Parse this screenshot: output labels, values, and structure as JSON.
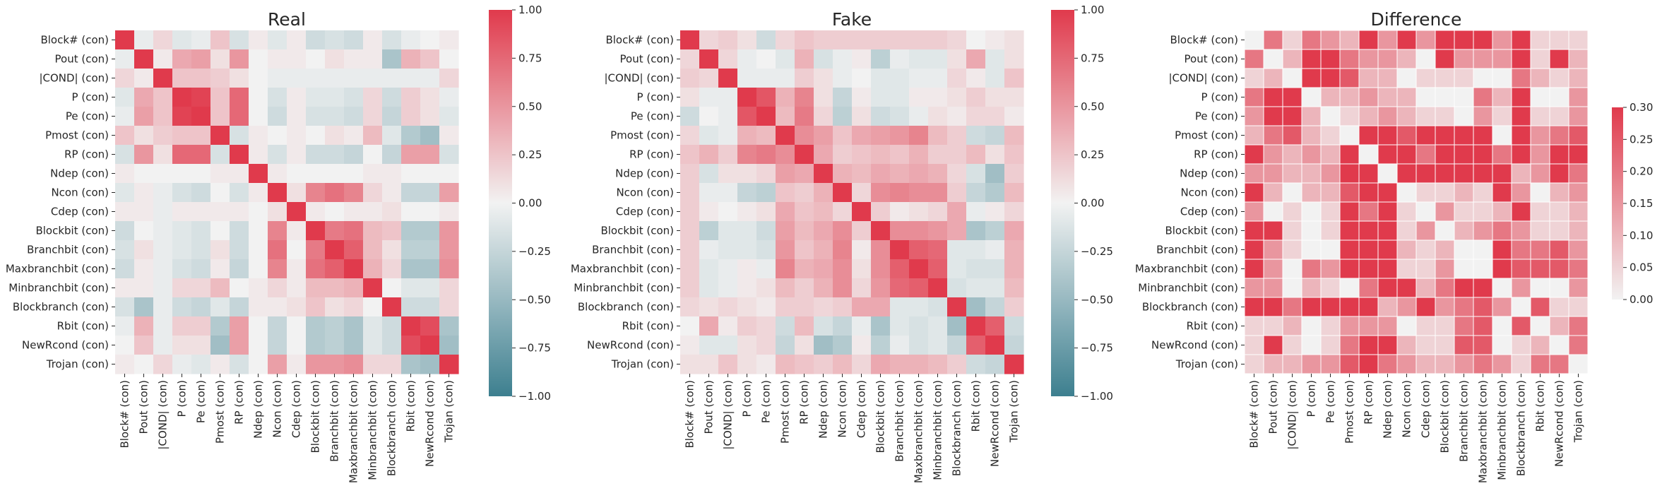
{
  "palette": {
    "neg": "#3d7f8f",
    "mid": "#f2f2f2",
    "pos": "#e03a4c",
    "text": "#262626"
  },
  "chart_data": [
    {
      "type": "heatmap",
      "title": "Real",
      "labels": [
        "Block# (con)",
        "Pout (con)",
        "|COND| (con)",
        "P (con)",
        "Pe (con)",
        "Pmost (con)",
        "RP (con)",
        "Ndep (con)",
        "Ncon (con)",
        "Cdep (con)",
        "Blockbit (con)",
        "Branchbit (con)",
        "Maxbranchbit (con)",
        "Minbranchbit (con)",
        "Blockbranch (con)",
        "Rbit (con)",
        "NewRcond (con)",
        "Trojan (con)"
      ],
      "vmin": -1,
      "vmax": 1,
      "colorbar_ticks": [
        -1,
        -0.75,
        -0.5,
        -0.25,
        0,
        0.25,
        0.5,
        0.75,
        1
      ],
      "colorbar_tick_labels": [
        "−1.00",
        "−0.75",
        "−0.50",
        "−0.25",
        "0.00",
        "0.25",
        "0.50",
        "0.75",
        "1.00"
      ],
      "grid": false,
      "values": [
        [
          1.0,
          -0.05,
          0.15,
          -0.1,
          -0.05,
          0.25,
          -0.15,
          0.05,
          -0.1,
          0.05,
          -0.2,
          -0.15,
          -0.2,
          0.05,
          -0.15,
          -0.05,
          0.0,
          0.05
        ],
        [
          -0.05,
          1.0,
          0.05,
          0.4,
          0.45,
          0.1,
          0.5,
          0.0,
          0.05,
          0.05,
          0.0,
          0.1,
          0.05,
          0.05,
          -0.4,
          0.35,
          0.25,
          0.0
        ],
        [
          0.15,
          0.05,
          1.0,
          0.25,
          0.25,
          0.2,
          0.1,
          0.0,
          -0.05,
          -0.05,
          -0.05,
          -0.05,
          -0.05,
          -0.05,
          -0.05,
          -0.05,
          -0.05,
          0.15
        ],
        [
          -0.1,
          0.4,
          0.25,
          1.0,
          0.95,
          0.25,
          0.75,
          0.0,
          -0.15,
          0.05,
          -0.1,
          -0.1,
          -0.15,
          0.15,
          -0.2,
          0.2,
          0.1,
          -0.05
        ],
        [
          -0.05,
          0.45,
          0.25,
          0.95,
          1.0,
          0.25,
          0.75,
          0.0,
          -0.2,
          0.05,
          -0.15,
          -0.15,
          -0.2,
          0.15,
          -0.25,
          0.2,
          0.1,
          -0.1
        ],
        [
          0.25,
          0.1,
          0.2,
          0.25,
          0.25,
          1.0,
          -0.15,
          0.05,
          0.0,
          0.05,
          0.0,
          0.1,
          0.05,
          0.3,
          -0.1,
          -0.35,
          -0.45,
          0.05
        ],
        [
          -0.15,
          0.5,
          0.1,
          0.75,
          0.75,
          -0.15,
          1.0,
          0.05,
          -0.15,
          0.05,
          -0.2,
          -0.2,
          -0.25,
          0.0,
          -0.25,
          0.45,
          0.45,
          -0.15
        ],
        [
          0.05,
          0.0,
          0.0,
          0.0,
          0.0,
          0.05,
          0.05,
          1.0,
          0.05,
          0.0,
          0.0,
          0.0,
          0.0,
          0.05,
          0.05,
          0.0,
          0.0,
          0.0
        ],
        [
          -0.1,
          0.05,
          -0.05,
          -0.15,
          -0.2,
          0.0,
          -0.15,
          0.05,
          1.0,
          0.1,
          0.6,
          0.7,
          0.6,
          0.15,
          0.05,
          -0.25,
          -0.25,
          0.45
        ],
        [
          0.05,
          0.05,
          -0.05,
          0.05,
          0.05,
          0.05,
          0.05,
          0.0,
          0.1,
          1.0,
          0.05,
          0.0,
          0.05,
          0.05,
          0.1,
          0.0,
          0.0,
          0.05
        ],
        [
          -0.2,
          0.0,
          -0.05,
          -0.1,
          -0.15,
          0.0,
          -0.2,
          0.0,
          0.6,
          0.05,
          1.0,
          0.65,
          0.7,
          0.3,
          0.25,
          -0.35,
          -0.35,
          0.5
        ],
        [
          -0.15,
          0.1,
          -0.05,
          -0.1,
          -0.15,
          0.1,
          -0.2,
          0.0,
          0.7,
          0.0,
          0.65,
          1.0,
          0.8,
          0.3,
          0.1,
          -0.3,
          -0.3,
          0.5
        ],
        [
          -0.2,
          0.05,
          -0.05,
          -0.15,
          -0.2,
          0.05,
          -0.25,
          0.0,
          0.6,
          0.05,
          0.7,
          0.8,
          1.0,
          0.35,
          0.15,
          -0.4,
          -0.4,
          0.55
        ],
        [
          0.05,
          0.05,
          -0.05,
          0.15,
          0.15,
          0.3,
          0.0,
          0.05,
          0.15,
          0.05,
          0.3,
          0.3,
          0.35,
          1.0,
          0.0,
          -0.1,
          -0.1,
          0.15
        ],
        [
          -0.15,
          -0.4,
          -0.05,
          -0.2,
          -0.25,
          -0.1,
          -0.25,
          0.05,
          0.05,
          0.1,
          0.25,
          0.1,
          0.15,
          0.0,
          1.0,
          -0.2,
          -0.2,
          0.15
        ],
        [
          -0.05,
          0.35,
          -0.05,
          0.2,
          0.2,
          -0.35,
          0.45,
          0.0,
          -0.25,
          0.0,
          -0.35,
          -0.3,
          -0.4,
          -0.1,
          -0.2,
          1.0,
          0.9,
          -0.4
        ],
        [
          0.0,
          0.25,
          -0.05,
          0.1,
          0.1,
          -0.45,
          0.45,
          0.0,
          -0.25,
          0.0,
          -0.35,
          -0.3,
          -0.4,
          -0.1,
          -0.2,
          0.9,
          1.0,
          -0.45
        ],
        [
          0.05,
          0.0,
          0.15,
          -0.05,
          -0.1,
          0.05,
          -0.15,
          0.0,
          0.45,
          0.05,
          0.5,
          0.5,
          0.55,
          0.15,
          0.15,
          -0.4,
          -0.45,
          1.0
        ]
      ]
    },
    {
      "type": "heatmap",
      "title": "Fake",
      "labels": [
        "Block# (con)",
        "Pout (con)",
        "|COND| (con)",
        "P (con)",
        "Pe (con)",
        "Pmost (con)",
        "RP (con)",
        "Ndep (con)",
        "Ncon (con)",
        "Cdep (con)",
        "Blockbit (con)",
        "Branchbit (con)",
        "Maxbranchbit (con)",
        "Minbranchbit (con)",
        "Blockbranch (con)",
        "Rbit (con)",
        "NewRcond (con)",
        "Trojan (con)"
      ],
      "vmin": -1,
      "vmax": 1,
      "colorbar_ticks": [
        -1,
        -0.75,
        -0.5,
        -0.25,
        0,
        0.25,
        0.5,
        0.75,
        1
      ],
      "colorbar_tick_labels": [
        "−1.00",
        "−0.75",
        "−0.50",
        "−0.25",
        "0.00",
        "0.25",
        "0.50",
        "0.75",
        "1.00"
      ],
      "grid": false,
      "values": [
        [
          1.0,
          0.15,
          0.2,
          0.1,
          -0.2,
          0.15,
          0.25,
          0.2,
          0.2,
          0.2,
          0.2,
          0.2,
          0.2,
          0.2,
          0.15,
          0.0,
          0.05,
          0.1
        ],
        [
          0.15,
          1.0,
          0.15,
          -0.05,
          0.0,
          -0.1,
          0.35,
          -0.15,
          -0.05,
          0.05,
          -0.3,
          -0.05,
          -0.1,
          -0.1,
          0.1,
          0.4,
          -0.1,
          0.1
        ],
        [
          0.2,
          0.15,
          1.0,
          -0.05,
          -0.05,
          -0.05,
          0.2,
          0.1,
          -0.05,
          0.0,
          -0.1,
          -0.1,
          -0.05,
          -0.05,
          0.15,
          0.05,
          -0.1,
          0.25
        ],
        [
          0.1,
          -0.05,
          -0.05,
          1.0,
          0.85,
          0.35,
          0.6,
          0.1,
          -0.25,
          0.05,
          -0.1,
          -0.1,
          0.05,
          0.05,
          0.1,
          0.2,
          0.1,
          0.1
        ],
        [
          -0.2,
          0.0,
          -0.05,
          0.85,
          1.0,
          0.3,
          0.65,
          0.15,
          -0.3,
          0.1,
          -0.2,
          -0.15,
          -0.05,
          0.1,
          0.05,
          0.15,
          0.15,
          0.05
        ],
        [
          0.15,
          -0.1,
          -0.05,
          0.35,
          0.3,
          1.0,
          0.55,
          0.45,
          0.25,
          0.4,
          0.45,
          0.5,
          0.6,
          0.3,
          0.2,
          -0.2,
          -0.25,
          0.3
        ],
        [
          0.25,
          0.35,
          0.2,
          0.6,
          0.65,
          0.55,
          1.0,
          0.4,
          0.2,
          0.25,
          0.3,
          0.25,
          0.35,
          0.2,
          0.2,
          0.3,
          0.1,
          0.25
        ],
        [
          0.2,
          -0.15,
          0.1,
          0.1,
          0.15,
          0.45,
          0.4,
          1.0,
          0.35,
          0.3,
          0.4,
          0.35,
          0.4,
          0.35,
          0.15,
          -0.15,
          -0.45,
          0.2
        ],
        [
          0.2,
          -0.05,
          -0.05,
          -0.25,
          -0.3,
          0.25,
          0.2,
          0.35,
          1.0,
          0.15,
          0.55,
          0.6,
          0.55,
          0.55,
          0.2,
          -0.25,
          -0.35,
          0.3
        ],
        [
          0.2,
          0.05,
          0.0,
          0.05,
          0.1,
          0.4,
          0.25,
          0.3,
          0.15,
          1.0,
          0.2,
          0.05,
          0.1,
          0.15,
          0.4,
          -0.05,
          0.05,
          0.15
        ],
        [
          0.2,
          -0.3,
          -0.1,
          -0.1,
          -0.2,
          0.45,
          0.3,
          0.4,
          0.55,
          0.2,
          1.0,
          0.55,
          0.55,
          0.5,
          0.4,
          -0.4,
          -0.3,
          0.4
        ],
        [
          0.2,
          -0.05,
          -0.1,
          -0.1,
          -0.15,
          0.5,
          0.25,
          0.35,
          0.6,
          0.05,
          0.55,
          1.0,
          0.8,
          0.75,
          -0.1,
          -0.1,
          -0.05,
          0.35
        ],
        [
          0.2,
          -0.1,
          -0.05,
          0.05,
          -0.05,
          0.6,
          0.35,
          0.4,
          0.55,
          0.1,
          0.55,
          0.8,
          1.0,
          0.8,
          -0.1,
          -0.15,
          -0.15,
          0.35
        ],
        [
          0.2,
          -0.1,
          -0.05,
          0.05,
          0.1,
          0.3,
          0.2,
          0.35,
          0.55,
          0.15,
          0.5,
          0.75,
          0.8,
          1.0,
          -0.15,
          -0.1,
          -0.1,
          0.3
        ],
        [
          0.15,
          0.1,
          0.15,
          0.1,
          0.05,
          0.2,
          0.2,
          0.15,
          0.2,
          0.4,
          0.4,
          -0.1,
          -0.1,
          -0.15,
          1.0,
          -0.45,
          -0.25,
          0.2
        ],
        [
          0.0,
          0.4,
          0.05,
          0.2,
          0.15,
          -0.2,
          0.3,
          -0.15,
          -0.25,
          -0.05,
          -0.4,
          -0.1,
          -0.15,
          -0.1,
          -0.45,
          1.0,
          0.8,
          -0.2
        ],
        [
          0.05,
          -0.1,
          -0.1,
          0.1,
          0.15,
          -0.25,
          0.1,
          -0.45,
          -0.35,
          0.05,
          -0.3,
          -0.05,
          -0.15,
          -0.1,
          -0.25,
          0.8,
          1.0,
          -0.25
        ],
        [
          0.1,
          0.1,
          0.25,
          0.1,
          0.05,
          0.3,
          0.25,
          0.2,
          0.3,
          0.15,
          0.4,
          0.35,
          0.35,
          0.3,
          0.2,
          -0.2,
          -0.25,
          1.0
        ]
      ]
    },
    {
      "type": "heatmap",
      "title": "Difference",
      "labels": [
        "Block# (con)",
        "Pout (con)",
        "|COND| (con)",
        "P (con)",
        "Pe (con)",
        "Pmost (con)",
        "RP (con)",
        "Ndep (con)",
        "Ncon (con)",
        "Cdep (con)",
        "Blockbit (con)",
        "Branchbit (con)",
        "Maxbranchbit (con)",
        "Minbranchbit (con)",
        "Blockbranch (con)",
        "Rbit (con)",
        "NewRcond (con)",
        "Trojan (con)"
      ],
      "vmin": 0,
      "vmax": 0.3,
      "colorbar_ticks": [
        0,
        0.05,
        0.1,
        0.15,
        0.2,
        0.25,
        0.3
      ],
      "colorbar_tick_labels": [
        "0.00",
        "0.05",
        "0.10",
        "0.15",
        "0.20",
        "0.25",
        "0.30"
      ],
      "grid": true,
      "values": [
        [
          0.0,
          0.2,
          0.05,
          0.2,
          0.15,
          0.1,
          0.4,
          0.15,
          0.3,
          0.15,
          0.4,
          0.35,
          0.4,
          0.15,
          0.3,
          0.05,
          0.05,
          0.05
        ],
        [
          0.2,
          0.0,
          0.1,
          0.45,
          0.45,
          0.2,
          0.15,
          0.15,
          0.1,
          0.0,
          0.3,
          0.15,
          0.15,
          0.15,
          0.5,
          0.05,
          0.35,
          0.1
        ],
        [
          0.05,
          0.1,
          0.0,
          0.3,
          0.3,
          0.25,
          0.1,
          0.1,
          0.0,
          0.05,
          0.05,
          0.05,
          0.0,
          0.0,
          0.2,
          0.1,
          0.05,
          0.1
        ],
        [
          0.2,
          0.45,
          0.3,
          0.0,
          0.1,
          0.1,
          0.15,
          0.1,
          0.1,
          0.0,
          0.0,
          0.0,
          0.2,
          0.1,
          0.3,
          0.0,
          0.0,
          0.15
        ],
        [
          0.15,
          0.45,
          0.3,
          0.1,
          0.0,
          0.05,
          0.1,
          0.15,
          0.1,
          0.05,
          0.05,
          0.0,
          0.15,
          0.05,
          0.3,
          0.05,
          0.05,
          0.15
        ],
        [
          0.1,
          0.2,
          0.25,
          0.1,
          0.05,
          0.0,
          0.7,
          0.4,
          0.25,
          0.35,
          0.45,
          0.4,
          0.55,
          0.0,
          0.3,
          0.15,
          0.2,
          0.25
        ],
        [
          0.4,
          0.15,
          0.1,
          0.15,
          0.1,
          0.7,
          0.0,
          0.35,
          0.35,
          0.2,
          0.5,
          0.45,
          0.6,
          0.2,
          0.45,
          0.15,
          0.35,
          0.4
        ],
        [
          0.15,
          0.15,
          0.1,
          0.1,
          0.15,
          0.4,
          0.35,
          0.0,
          0.3,
          0.3,
          0.4,
          0.35,
          0.4,
          0.3,
          0.1,
          0.15,
          0.45,
          0.2
        ],
        [
          0.3,
          0.1,
          0.0,
          0.1,
          0.1,
          0.25,
          0.35,
          0.3,
          0.0,
          0.05,
          0.05,
          0.1,
          0.05,
          0.4,
          0.15,
          0.0,
          0.1,
          0.15
        ],
        [
          0.15,
          0.0,
          0.05,
          0.0,
          0.05,
          0.35,
          0.2,
          0.3,
          0.05,
          0.0,
          0.15,
          0.05,
          0.05,
          0.1,
          0.3,
          0.05,
          0.05,
          0.1
        ],
        [
          0.4,
          0.3,
          0.05,
          0.0,
          0.05,
          0.45,
          0.5,
          0.4,
          0.05,
          0.15,
          0.0,
          0.1,
          0.15,
          0.2,
          0.15,
          0.05,
          0.05,
          0.1
        ],
        [
          0.35,
          0.15,
          0.05,
          0.0,
          0.0,
          0.4,
          0.45,
          0.35,
          0.1,
          0.05,
          0.1,
          0.0,
          0.0,
          0.45,
          0.2,
          0.2,
          0.25,
          0.15
        ],
        [
          0.4,
          0.15,
          0.0,
          0.2,
          0.15,
          0.55,
          0.6,
          0.4,
          0.05,
          0.05,
          0.15,
          0.0,
          0.0,
          0.45,
          0.25,
          0.25,
          0.25,
          0.2
        ],
        [
          0.15,
          0.15,
          0.0,
          0.1,
          0.05,
          0.0,
          0.2,
          0.3,
          0.4,
          0.1,
          0.2,
          0.45,
          0.45,
          0.0,
          0.15,
          0.0,
          0.0,
          0.15
        ],
        [
          0.3,
          0.5,
          0.2,
          0.3,
          0.3,
          0.3,
          0.45,
          0.1,
          0.15,
          0.3,
          0.15,
          0.2,
          0.25,
          0.15,
          0.0,
          0.25,
          0.05,
          0.05
        ],
        [
          0.05,
          0.05,
          0.1,
          0.0,
          0.05,
          0.15,
          0.15,
          0.15,
          0.0,
          0.05,
          0.05,
          0.2,
          0.25,
          0.0,
          0.25,
          0.0,
          0.1,
          0.2
        ],
        [
          0.05,
          0.35,
          0.05,
          0.0,
          0.05,
          0.2,
          0.35,
          0.45,
          0.1,
          0.05,
          0.05,
          0.25,
          0.25,
          0.0,
          0.05,
          0.1,
          0.0,
          0.2
        ],
        [
          0.05,
          0.1,
          0.1,
          0.15,
          0.15,
          0.25,
          0.4,
          0.2,
          0.15,
          0.1,
          0.1,
          0.15,
          0.2,
          0.15,
          0.05,
          0.2,
          0.2,
          0.0
        ]
      ]
    }
  ]
}
